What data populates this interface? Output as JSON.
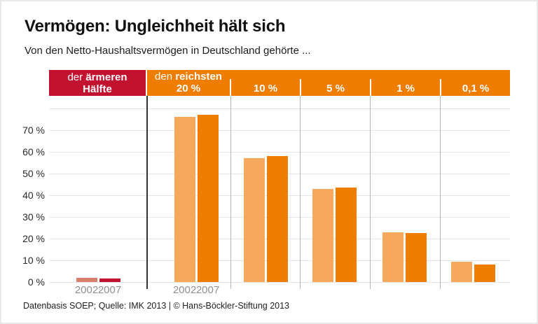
{
  "title": "Vermögen: Ungleichheit hält sich",
  "subtitle": "Von den Netto-Haushaltsvermögen in Deutschland gehörte ...",
  "footer": "Datenbasis SOEP; Quelle: IMK 2013 | © Hans-Böckler-Stiftung 2013",
  "header": {
    "poor": {
      "line1_regular": "der",
      "line1_bold": "ärmeren",
      "line2_bold": "Hälfte"
    },
    "rich": {
      "line1_regular": "den",
      "line1_bold": "reichsten",
      "cells": [
        "20 %",
        "10 %",
        "5 %",
        "1 %",
        "0,1 %"
      ]
    }
  },
  "axis": {
    "ytick_values": [
      0,
      10,
      20,
      30,
      40,
      50,
      60,
      70
    ],
    "ytick_labels": [
      "0 %",
      "10 %",
      "20 %",
      "30 %",
      "40 %",
      "50 %",
      "60 %",
      "70 %"
    ],
    "ymax_grid": 80
  },
  "colors": {
    "band_red": "#c2122f",
    "band_orange": "#ee7d00",
    "bar_2002_poor": "#d8806e",
    "bar_2007_poor": "#c2122f",
    "bar_2002_rich": "#f6a95d",
    "bar_2007_rich": "#ee7d00",
    "grid": "#e4e4e4",
    "separator": "#b5b5b5",
    "axis_dark": "#333333",
    "year_label": "#8f8f8f"
  },
  "chart_data": {
    "type": "bar",
    "title": "Vermögen: Ungleichheit hält sich",
    "subtitle": "Von den Netto-Haushaltsvermögen in Deutschland gehörte ...",
    "categories": [
      "der ärmeren Hälfte",
      "den reichsten 20 %",
      "den reichsten 10 %",
      "den reichsten 5 %",
      "den reichsten 1 %",
      "den reichsten 0,1 %"
    ],
    "series": [
      {
        "name": "2002",
        "values": [
          2,
          76,
          57,
          43,
          23,
          9.5
        ]
      },
      {
        "name": "2007",
        "values": [
          1.5,
          77,
          58,
          43.5,
          22.5,
          8
        ]
      }
    ],
    "unit": "%",
    "xlabel": "",
    "ylabel": "",
    "ylim": [
      0,
      80
    ],
    "grid": true,
    "legend_position": "years shown under first two bar groups",
    "source": "Datenbasis SOEP; Quelle: IMK 2013 | © Hans-Böckler-Stiftung 2013"
  }
}
